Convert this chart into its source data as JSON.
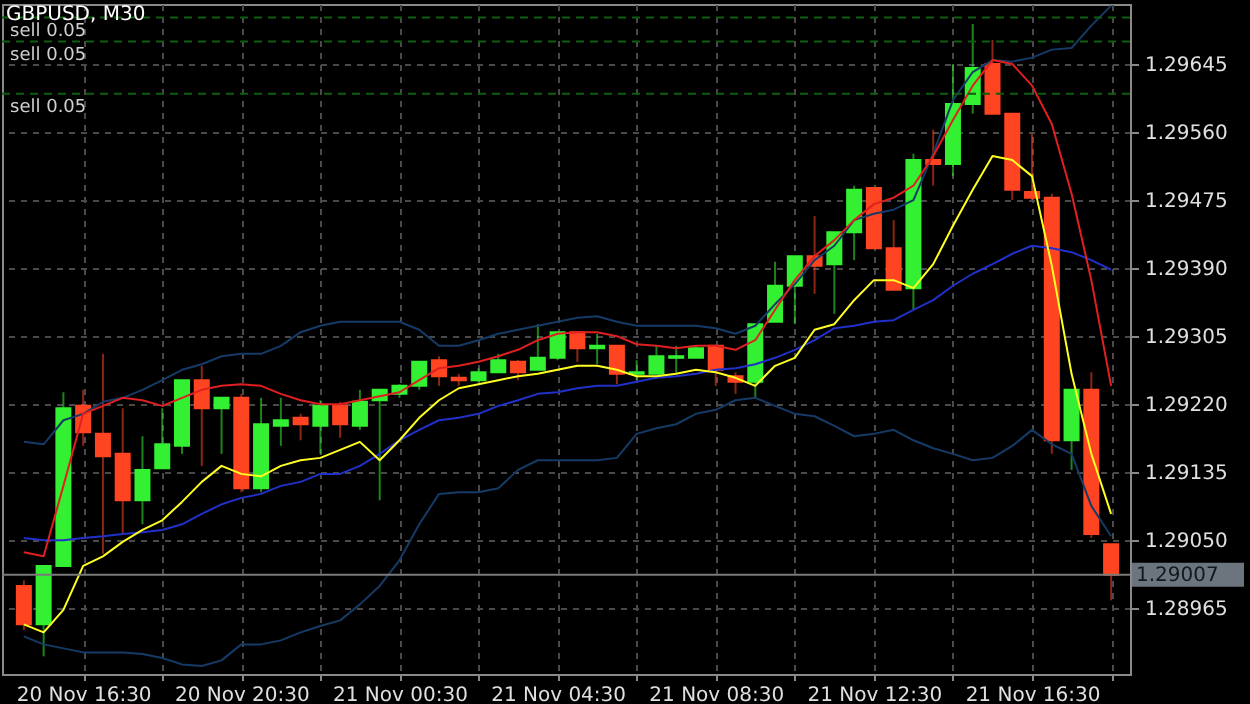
{
  "chart_data": {
    "type": "candlestick",
    "title": "GBPUSD, M30",
    "categories": [
      null,
      null,
      null,
      "20 Nov 16:30",
      null,
      null,
      null,
      null,
      null,
      null,
      null,
      "20 Nov 20:30",
      null,
      null,
      null,
      null,
      null,
      null,
      null,
      "21 Nov 00:30",
      null,
      null,
      null,
      null,
      null,
      null,
      null,
      "21 Nov 04:30",
      null,
      null,
      null,
      null,
      null,
      null,
      null,
      "21 Nov 08:30",
      null,
      null,
      null,
      null,
      null,
      null,
      null,
      "21 Nov 12:30",
      null,
      null,
      null,
      null,
      null,
      null,
      null,
      "21 Nov 16:30",
      null,
      null,
      null,
      null
    ],
    "ohlc": [
      [
        1.28993,
        1.29,
        1.28938,
        1.28945
      ],
      [
        1.28945,
        1.29018,
        1.28905,
        1.29018
      ],
      [
        1.29018,
        1.29235,
        1.29018,
        1.29215
      ],
      [
        1.29218,
        1.29238,
        1.29168,
        1.29185
      ],
      [
        1.29183,
        1.29283,
        1.29033,
        1.29155
      ],
      [
        1.29158,
        1.29215,
        1.29058,
        1.291
      ],
      [
        1.291,
        1.2918,
        1.2907,
        1.29138
      ],
      [
        1.2914,
        1.29215,
        1.2914,
        1.2917
      ],
      [
        1.29168,
        1.2925,
        1.29158,
        1.2925
      ],
      [
        1.2925,
        1.29268,
        1.29143,
        1.29215
      ],
      [
        1.29215,
        1.29228,
        1.29158,
        1.29228
      ],
      [
        1.29228,
        1.29233,
        1.2911,
        1.29115
      ],
      [
        1.29115,
        1.29228,
        1.2911,
        1.29195
      ],
      [
        1.29193,
        1.29228,
        1.29168,
        1.292
      ],
      [
        1.29203,
        1.29208,
        1.29175,
        1.29195
      ],
      [
        1.29193,
        1.29225,
        1.29158,
        1.29218
      ],
      [
        1.29218,
        1.29223,
        1.29178,
        1.29195
      ],
      [
        1.29193,
        1.29238,
        1.29188,
        1.29223
      ],
      [
        1.29225,
        1.29238,
        1.291,
        1.29238
      ],
      [
        1.29233,
        1.29245,
        1.29228,
        1.29243
      ],
      [
        1.29243,
        1.29273,
        1.29238,
        1.29273
      ],
      [
        1.29275,
        1.2928,
        1.29243,
        1.29255
      ],
      [
        1.29253,
        1.29258,
        1.29243,
        1.2925
      ],
      [
        1.2925,
        1.29265,
        1.29248,
        1.2926
      ],
      [
        1.2926,
        1.29283,
        1.2926,
        1.29275
      ],
      [
        1.29273,
        1.29275,
        1.2925,
        1.2926
      ],
      [
        1.29263,
        1.2932,
        1.29263,
        1.29278
      ],
      [
        1.29278,
        1.2931,
        1.29275,
        1.2931
      ],
      [
        1.2931,
        1.2931,
        1.29273,
        1.2929
      ],
      [
        1.2929,
        1.29308,
        1.2927,
        1.29293
      ],
      [
        1.29293,
        1.29293,
        1.29245,
        1.29258
      ],
      [
        1.29258,
        1.29275,
        1.2925,
        1.2926
      ],
      [
        1.29258,
        1.29293,
        1.29258,
        1.2928
      ],
      [
        1.29278,
        1.29293,
        1.29258,
        1.2928
      ],
      [
        1.29278,
        1.29293,
        1.29278,
        1.2929
      ],
      [
        1.29293,
        1.29293,
        1.29243,
        1.29263
      ],
      [
        1.29255,
        1.2926,
        1.29233,
        1.29248
      ],
      [
        1.29248,
        1.2932,
        1.29228,
        1.2932
      ],
      [
        1.29323,
        1.29398,
        1.29323,
        1.29368
      ],
      [
        1.29368,
        1.29405,
        1.2932,
        1.29405
      ],
      [
        1.29405,
        1.29455,
        1.29358,
        1.29393
      ],
      [
        1.29395,
        1.29435,
        1.29333,
        1.29435
      ],
      [
        1.29435,
        1.29493,
        1.294,
        1.29488
      ],
      [
        1.2949,
        1.2949,
        1.29415,
        1.29415
      ],
      [
        1.29415,
        1.2945,
        1.29363,
        1.29363
      ],
      [
        1.29365,
        1.29533,
        1.29338,
        1.29525
      ],
      [
        1.29525,
        1.29563,
        1.29493,
        1.2952
      ],
      [
        1.2952,
        1.29645,
        1.29505,
        1.29595
      ],
      [
        1.29595,
        1.29695,
        1.29583,
        1.2964
      ],
      [
        1.29645,
        1.29675,
        1.29583,
        1.29583
      ],
      [
        1.29583,
        1.29583,
        1.29475,
        1.29488
      ],
      [
        1.29485,
        1.29558,
        1.29475,
        1.29478
      ],
      [
        1.29478,
        1.29483,
        1.29158,
        1.29175
      ],
      [
        1.29175,
        1.29238,
        1.29138,
        1.29238
      ],
      [
        1.29238,
        1.2926,
        1.29053,
        1.29058
      ],
      [
        1.29045,
        1.29045,
        1.28975,
        1.29007
      ]
    ],
    "colors": [
      "#ff4422",
      "#33f033",
      "#33f033",
      "#ff4422",
      "#ff4422",
      "#ff4422",
      "#33f033",
      "#33f033",
      "#33f033",
      "#ff4422",
      "#33f033",
      "#ff4422",
      "#33f033",
      "#33f033",
      "#ff4422",
      "#33f033",
      "#ff4422",
      "#33f033",
      "#33f033",
      "#33f033",
      "#33f033",
      "#ff4422",
      "#ff4422",
      "#33f033",
      "#33f033",
      "#ff4422",
      "#33f033",
      "#33f033",
      "#ff4422",
      "#33f033",
      "#ff4422",
      "#33f033",
      "#33f033",
      "#33f033",
      "#33f033",
      "#ff4422",
      "#ff4422",
      "#33f033",
      "#33f033",
      "#33f033",
      "#ff4422",
      "#33f033",
      "#33f033",
      "#ff4422",
      "#ff4422",
      "#33f033",
      "#ff4422",
      "#33f033",
      "#33f033",
      "#ff4422",
      "#ff4422",
      "#ff4422",
      "#ff4422",
      "#33f033",
      "#ff4422",
      "#ff4422"
    ],
    "series": [
      {
        "type": "line",
        "color": "#163a66",
        "values": [
          1.29173,
          1.2917,
          1.292,
          1.29208,
          1.29223,
          1.29228,
          1.29238,
          1.2925,
          1.29263,
          1.2927,
          1.2928,
          1.29283,
          1.29283,
          1.29293,
          1.2931,
          1.29318,
          1.29323,
          1.29323,
          1.29323,
          1.29323,
          1.29313,
          1.29293,
          1.29293,
          1.293,
          1.29308,
          1.29313,
          1.29318,
          1.29323,
          1.29328,
          1.2933,
          1.29323,
          1.29318,
          1.29318,
          1.29318,
          1.29318,
          1.29315,
          1.29308,
          1.29318,
          1.29345,
          1.2937,
          1.294,
          1.29418,
          1.2945,
          1.29458,
          1.29463,
          1.29475,
          1.29533,
          1.296,
          1.29635,
          1.2965,
          1.29648,
          1.29653,
          1.29663,
          1.29665,
          1.29693,
          1.29718
        ]
      },
      {
        "type": "line",
        "color": "#163a66",
        "values": [
          1.2893,
          1.2892,
          1.28915,
          1.2891,
          1.2891,
          1.2891,
          1.28908,
          1.28903,
          1.28895,
          1.28893,
          1.289,
          1.2892,
          1.2892,
          1.28925,
          1.28935,
          1.28943,
          1.2895,
          1.2897,
          1.28993,
          1.29025,
          1.2907,
          1.29108,
          1.2911,
          1.2911,
          1.29115,
          1.29138,
          1.2915,
          1.2915,
          1.2915,
          1.2915,
          1.29153,
          1.29183,
          1.2919,
          1.29195,
          1.29208,
          1.29213,
          1.29225,
          1.29228,
          1.29218,
          1.29208,
          1.29205,
          1.29193,
          1.2918,
          1.29183,
          1.29188,
          1.29175,
          1.29165,
          1.29158,
          1.2915,
          1.29153,
          1.29168,
          1.29188,
          1.2917,
          1.29158,
          1.29093,
          1.29055
        ]
      },
      {
        "type": "line",
        "color": "#2030c8",
        "values": [
          1.29053,
          1.2905,
          1.2905,
          1.29053,
          1.29055,
          1.29058,
          1.2906,
          1.29063,
          1.2907,
          1.29083,
          1.29095,
          1.29103,
          1.29108,
          1.29118,
          1.29123,
          1.29133,
          1.29133,
          1.29143,
          1.29158,
          1.29175,
          1.29188,
          1.292,
          1.29203,
          1.29208,
          1.29218,
          1.29225,
          1.29233,
          1.29235,
          1.2924,
          1.29243,
          1.29243,
          1.29248,
          1.29253,
          1.29255,
          1.29258,
          1.29263,
          1.29265,
          1.2927,
          1.29278,
          1.29288,
          1.293,
          1.29315,
          1.29318,
          1.29323,
          1.29325,
          1.29338,
          1.2935,
          1.29368,
          1.29383,
          1.29395,
          1.29408,
          1.29418,
          1.29415,
          1.2941,
          1.294,
          1.29388
        ]
      },
      {
        "type": "line",
        "color": "#ffff22",
        "values": [
          1.28945,
          1.28935,
          1.28963,
          1.29018,
          1.2903,
          1.29048,
          1.29063,
          1.29075,
          1.29098,
          1.29123,
          1.29143,
          1.29133,
          1.2913,
          1.29143,
          1.2915,
          1.29153,
          1.29163,
          1.29173,
          1.2915,
          1.29175,
          1.29203,
          1.29225,
          1.2924,
          1.29245,
          1.2925,
          1.29255,
          1.29258,
          1.29263,
          1.29268,
          1.29268,
          1.29263,
          1.29255,
          1.29255,
          1.29258,
          1.29263,
          1.2926,
          1.29253,
          1.29243,
          1.29268,
          1.29278,
          1.29313,
          1.2932,
          1.2935,
          1.29375,
          1.29375,
          1.29365,
          1.29395,
          1.29443,
          1.29488,
          1.2953,
          1.29525,
          1.29505,
          1.29393,
          1.29258,
          1.29158,
          1.29083
        ]
      },
      {
        "type": "line",
        "color": "#e02020",
        "values": [
          1.29035,
          1.2903,
          1.29118,
          1.29208,
          1.29218,
          1.29228,
          1.29225,
          1.29218,
          1.29228,
          1.29238,
          1.29243,
          1.29245,
          1.29243,
          1.29233,
          1.29225,
          1.2922,
          1.2922,
          1.29225,
          1.2923,
          1.29235,
          1.2925,
          1.29265,
          1.29268,
          1.29273,
          1.2928,
          1.29288,
          1.293,
          1.29308,
          1.2931,
          1.2931,
          1.29305,
          1.29295,
          1.29293,
          1.2929,
          1.29293,
          1.29293,
          1.29288,
          1.293,
          1.29338,
          1.29375,
          1.29405,
          1.29425,
          1.2945,
          1.2947,
          1.29478,
          1.29493,
          1.2953,
          1.29575,
          1.29618,
          1.2965,
          1.29645,
          1.29618,
          1.2957,
          1.29483,
          1.29375,
          1.29243
        ]
      }
    ],
    "ylim": [
      1.28883,
      1.2972
    ],
    "yticks": [
      1.28965,
      {
        "value": 1.2905,
        "label": "1.29050"
      },
      1.29135,
      {
        "value": 1.2922,
        "label": "1.29220"
      },
      1.29305,
      {
        "value": 1.2939,
        "label": "1.29390"
      },
      1.29475,
      {
        "value": 1.2956,
        "label": "1.29560"
      },
      1.29645
    ],
    "grid": true,
    "ref_lines": [
      {
        "axis": "y",
        "value": 1.29703,
        "label": "sell 0.05",
        "color": "#0e5e0e",
        "line_style": "dashed"
      },
      {
        "axis": "y",
        "value": 1.29673,
        "label": "sell 0.05",
        "color": "#0e5e0e",
        "line_style": "dashed"
      },
      {
        "axis": "y",
        "value": 1.29608,
        "label": "sell 0.05",
        "color": "#0e5e0e",
        "line_style": "dashed"
      },
      {
        "axis": "y",
        "value": 1.29007,
        "label": "1.29007",
        "color": "#7a7a7a",
        "line_style": "solid"
      }
    ]
  }
}
